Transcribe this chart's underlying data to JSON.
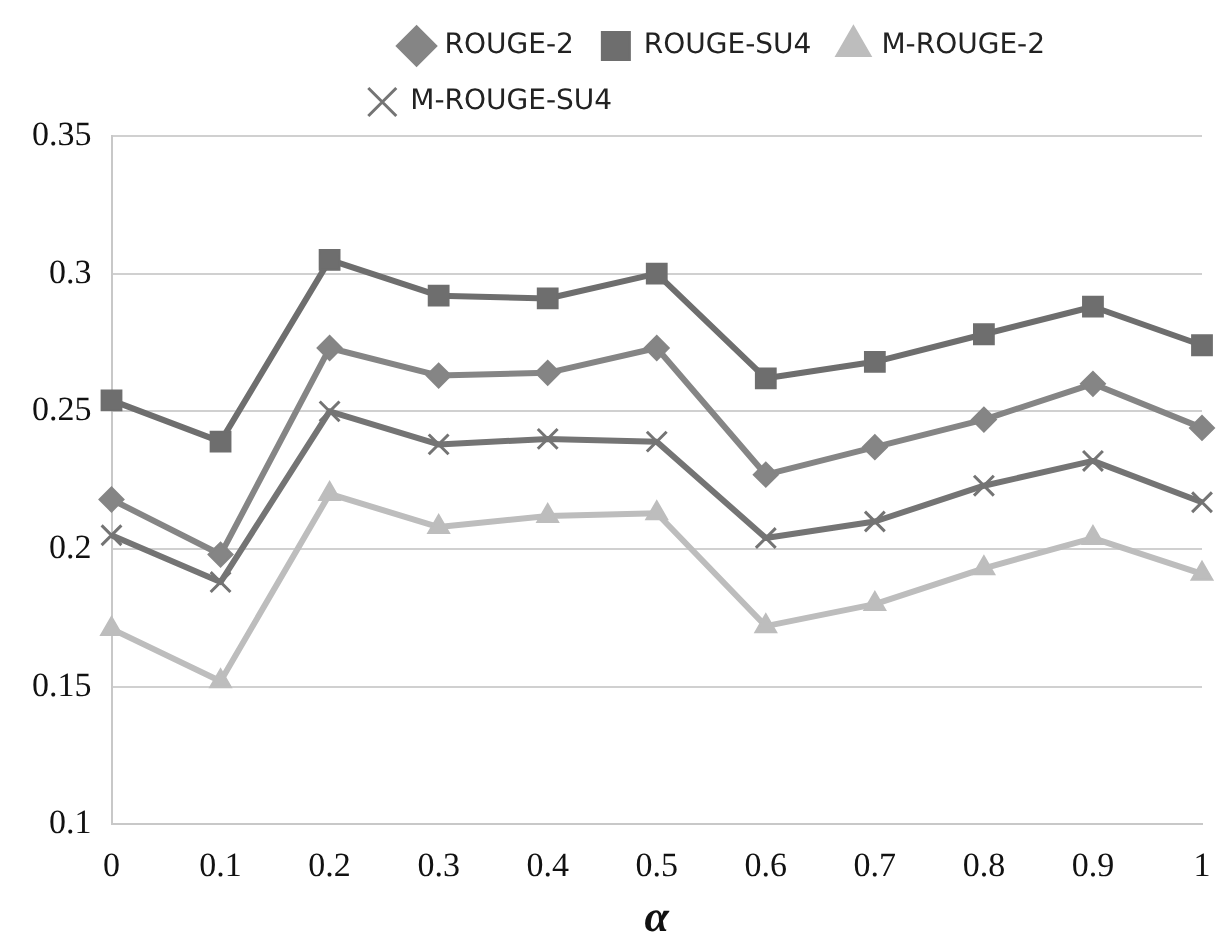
{
  "chart_data": {
    "type": "line",
    "xlabel": "α",
    "categories": [
      "0",
      "0.1",
      "0.2",
      "0.3",
      "0.4",
      "0.5",
      "0.6",
      "0.7",
      "0.8",
      "0.9",
      "1"
    ],
    "series": [
      {
        "name": "ROUGE-2",
        "color": "#858585",
        "marker": "diamond",
        "values": [
          0.218,
          0.198,
          0.273,
          0.263,
          0.264,
          0.273,
          0.227,
          0.237,
          0.247,
          0.26,
          0.244
        ]
      },
      {
        "name": "ROUGE-SU4",
        "color": "#6e6e6e",
        "marker": "square",
        "values": [
          0.254,
          0.239,
          0.305,
          0.292,
          0.291,
          0.3,
          0.262,
          0.268,
          0.278,
          0.288,
          0.274
        ]
      },
      {
        "name": "M-ROUGE-2",
        "color": "#bdbdbd",
        "marker": "triangle",
        "values": [
          0.171,
          0.152,
          0.22,
          0.208,
          0.212,
          0.213,
          0.172,
          0.18,
          0.193,
          0.204,
          0.191
        ]
      },
      {
        "name": "M-ROUGE-SU4",
        "color": "#747474",
        "marker": "cross",
        "values": [
          0.205,
          0.188,
          0.25,
          0.238,
          0.24,
          0.239,
          0.204,
          0.21,
          0.223,
          0.232,
          0.217
        ]
      }
    ],
    "ylim": [
      0.1,
      0.35
    ],
    "yticks": [
      0.1,
      0.15,
      0.2,
      0.25,
      0.3,
      0.35
    ],
    "grid": "y",
    "legend": "top",
    "line_style": "solid"
  }
}
